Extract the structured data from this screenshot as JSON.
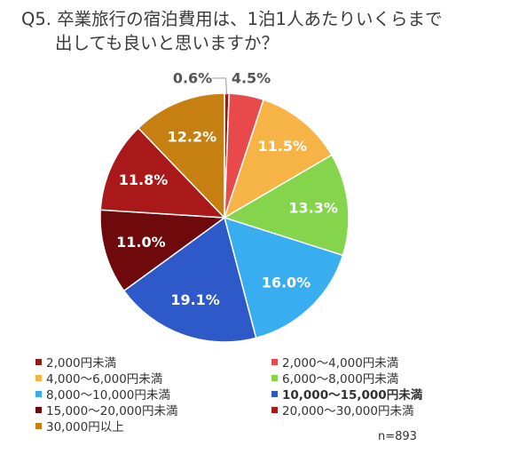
{
  "title_line1": "Q5. 卒業旅行の宿泊費用は、1泊1人あたりいくらまで",
  "title_line2": "出しても良いと思いますか？",
  "sample_size": "n=893",
  "chart_data": {
    "type": "pie",
    "title": "Q5. 卒業旅行の宿泊費用は、1泊1人あたりいくらまで出しても良いと思いますか？",
    "start_angle_deg": 0,
    "direction": "clockwise",
    "legend_position": "bottom",
    "slices": [
      {
        "label": "2,000円未満",
        "value": 0.6,
        "display": "0.6%",
        "color": "#8e1d14"
      },
      {
        "label": "2,000〜4,000円未満",
        "value": 4.5,
        "display": "4.5%",
        "color": "#e8494b"
      },
      {
        "label": "4,000〜6,000円未満",
        "value": 11.5,
        "display": "11.5%",
        "color": "#f7b446"
      },
      {
        "label": "6,000〜8,000円未満",
        "value": 13.3,
        "display": "13.3%",
        "color": "#84d44c"
      },
      {
        "label": "8,000〜10,000円未満",
        "value": 16.0,
        "display": "16.0%",
        "color": "#38aef0"
      },
      {
        "label": "10,000〜15,000円未満",
        "value": 19.1,
        "display": "19.1%",
        "color": "#2e59c9",
        "emphasized": true
      },
      {
        "label": "15,000〜20,000円未満",
        "value": 11.0,
        "display": "11.0%",
        "color": "#6e0a0c"
      },
      {
        "label": "20,000〜30,000円未満",
        "value": 11.8,
        "display": "11.8%",
        "color": "#a91919"
      },
      {
        "label": "30,000円以上",
        "value": 12.2,
        "display": "12.2%",
        "color": "#c67f11"
      }
    ]
  }
}
